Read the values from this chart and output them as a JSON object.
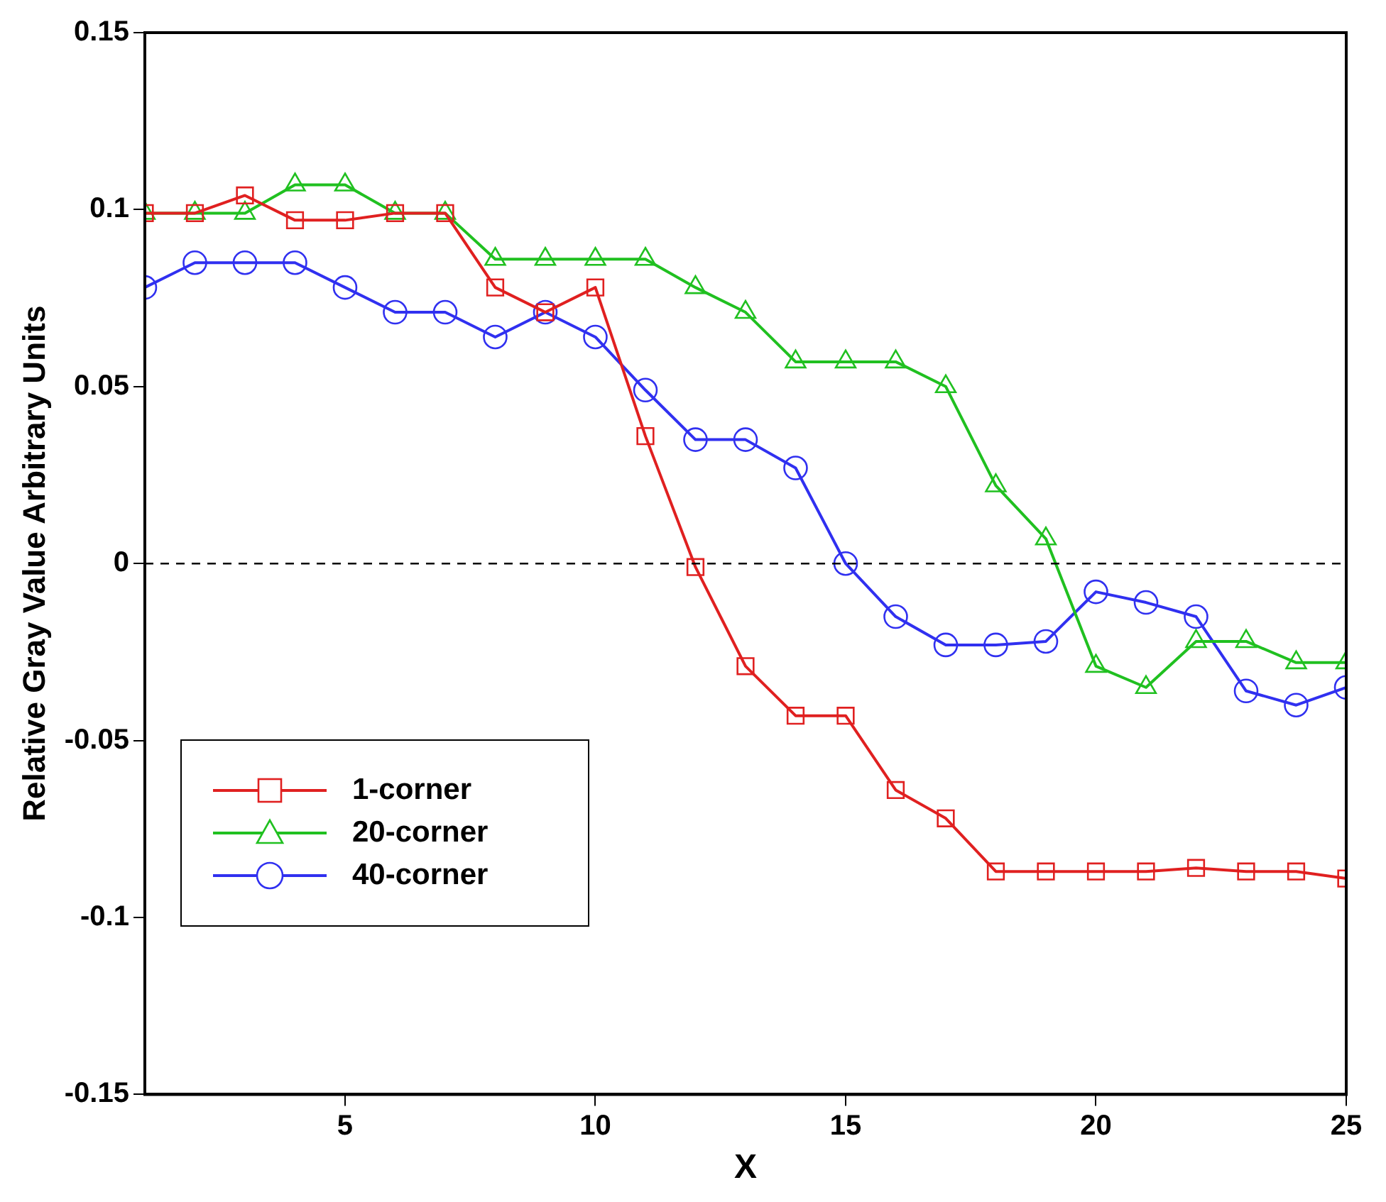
{
  "chart_data": {
    "type": "line",
    "xlabel": "X",
    "ylabel": "Relative Gray Value Arbitrary Units",
    "x": [
      1,
      2,
      3,
      4,
      5,
      6,
      7,
      8,
      9,
      10,
      11,
      12,
      13,
      14,
      15,
      16,
      17,
      18,
      19,
      20,
      21,
      22,
      23,
      24,
      25
    ],
    "series": [
      {
        "name": "1-corner",
        "color": "#e02020",
        "marker": "square",
        "values": [
          0.099,
          0.099,
          0.104,
          0.097,
          0.097,
          0.099,
          0.099,
          0.078,
          0.071,
          0.078,
          0.036,
          -0.001,
          -0.029,
          -0.043,
          -0.043,
          -0.064,
          -0.072,
          -0.087,
          -0.087,
          -0.087,
          -0.087,
          -0.086,
          -0.087,
          -0.087,
          -0.089
        ]
      },
      {
        "name": "20-corner",
        "color": "#20c020",
        "marker": "triangle",
        "values": [
          0.099,
          0.099,
          0.099,
          0.107,
          0.107,
          0.099,
          0.099,
          0.086,
          0.086,
          0.086,
          0.086,
          0.078,
          0.071,
          0.057,
          0.057,
          0.057,
          0.05,
          0.022,
          0.007,
          -0.029,
          -0.035,
          -0.022,
          -0.022,
          -0.028,
          -0.028
        ]
      },
      {
        "name": "40-corner",
        "color": "#3030f0",
        "marker": "circle",
        "values": [
          0.078,
          0.085,
          0.085,
          0.085,
          0.078,
          0.071,
          0.071,
          0.064,
          0.071,
          0.064,
          0.049,
          0.035,
          0.035,
          0.027,
          0,
          -0.015,
          -0.023,
          -0.023,
          -0.022,
          -0.008,
          -0.011,
          -0.015,
          -0.036,
          -0.04,
          -0.035
        ]
      }
    ],
    "xlim": [
      1,
      25
    ],
    "xticks": [
      5,
      10,
      15,
      20,
      25
    ],
    "ylim": [
      -0.15,
      0.15
    ],
    "yticks": [
      -0.15,
      -0.1,
      -0.05,
      0,
      0.05,
      0.1,
      0.15
    ],
    "ref_lines": [
      {
        "axis": "y",
        "value": 0,
        "color": "#000000",
        "line_style": "dashed"
      }
    ],
    "grid": false,
    "legend": "bottom left",
    "line_style": "solid"
  }
}
